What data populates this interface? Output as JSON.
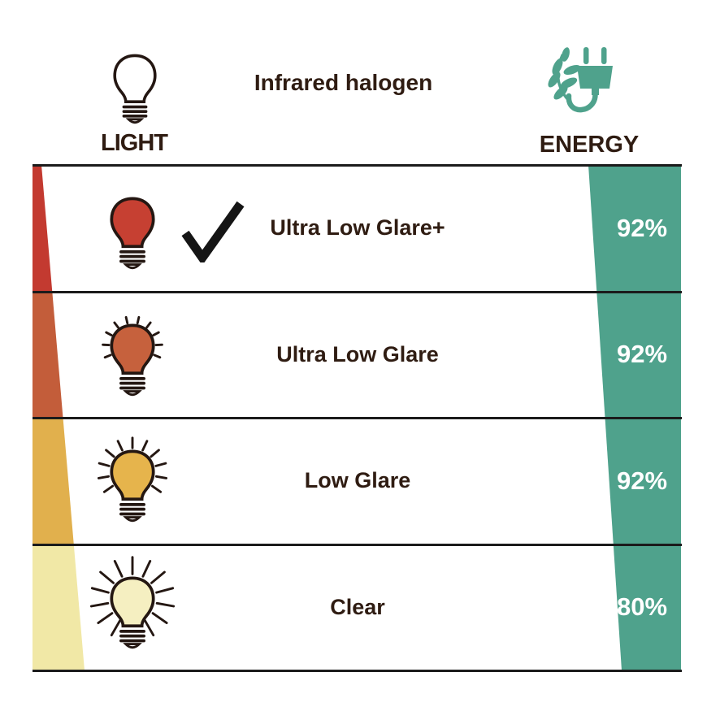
{
  "header": {
    "title": "Infrared halogen",
    "light_label": "LIGHT",
    "energy_label": "ENERGY"
  },
  "colors": {
    "accent_green": "#4fa28c",
    "text_dark": "#2f1c12",
    "line": "#1b1b1b",
    "bulb_outline": "#241712",
    "check": "#151515"
  },
  "rows": [
    {
      "label": "Ultra Low Glare+",
      "energy": "92%",
      "checked": true,
      "bulb_color": "#c64032",
      "wedge_color": "#c33a30",
      "rays": "none"
    },
    {
      "label": "Ultra Low Glare",
      "energy": "92%",
      "checked": false,
      "bulb_color": "#c6613d",
      "wedge_color": "#c35d3a",
      "rays": "short"
    },
    {
      "label": "Low Glare",
      "energy": "92%",
      "checked": false,
      "bulb_color": "#e6b44c",
      "wedge_color": "#e1b04d",
      "rays": "medium"
    },
    {
      "label": "Clear",
      "energy": "80%",
      "checked": false,
      "bulb_color": "#f5efc1",
      "wedge_color": "#f1e8a6",
      "rays": "long"
    }
  ],
  "chart_data": {
    "type": "table",
    "title": "Infrared halogen",
    "columns": [
      "LIGHT",
      "ENERGY"
    ],
    "rows": [
      {
        "light": "Ultra Low Glare+",
        "energy_percent": 92,
        "selected": true
      },
      {
        "light": "Ultra Low Glare",
        "energy_percent": 92,
        "selected": false
      },
      {
        "light": "Low Glare",
        "energy_percent": 92,
        "selected": false
      },
      {
        "light": "Clear",
        "energy_percent": 80,
        "selected": false
      }
    ],
    "legend_position": "none",
    "notes": "Left wedge encodes glare level (red=most glare reduction, pale yellow=clear); right green band shows energy saving percent."
  }
}
